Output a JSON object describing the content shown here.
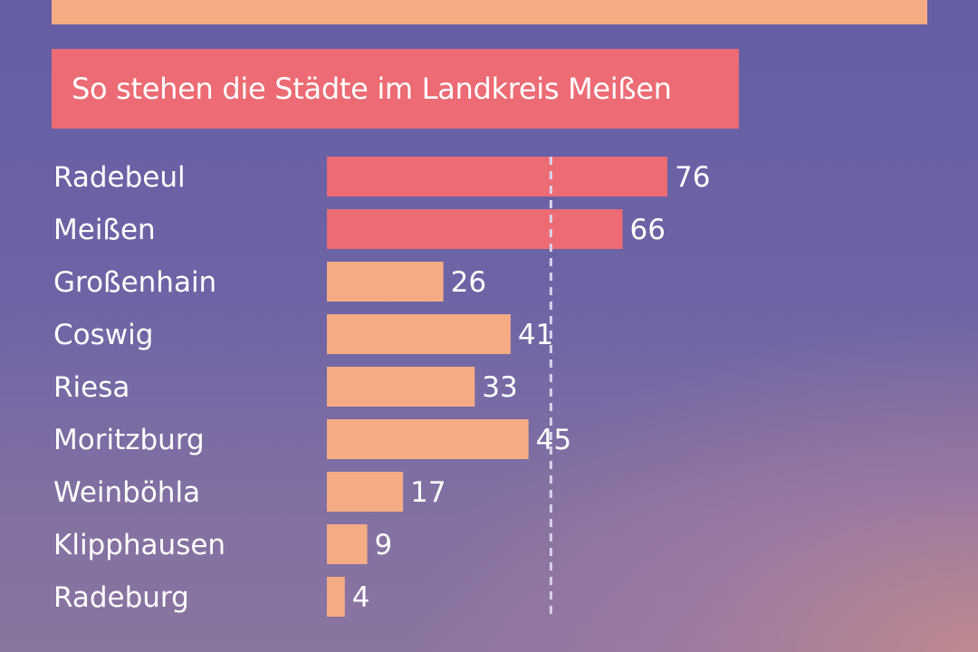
{
  "title": "So stehen die Städte im Landkreis Meißen",
  "colors": {
    "highlight": "#ec6b74",
    "normal": "#f5ac85",
    "banner": "#f5ac85",
    "reference_line": "#d9d4ec"
  },
  "chart_data": {
    "type": "bar",
    "orientation": "horizontal",
    "categories": [
      "Radebeul",
      "Meißen",
      "Großenhain",
      "Coswig",
      "Riesa",
      "Moritzburg",
      "Weinböhla",
      "Klipphausen",
      "Radeburg"
    ],
    "values": [
      76,
      66,
      26,
      41,
      33,
      45,
      17,
      9,
      4
    ],
    "highlighted": [
      "Radebeul",
      "Meißen"
    ],
    "reference_line": 50,
    "title": "So stehen die Städte im Landkreis Meißen",
    "xlabel": "",
    "ylabel": "",
    "xlim": [
      0,
      76
    ],
    "grid": false,
    "legend": "none"
  }
}
